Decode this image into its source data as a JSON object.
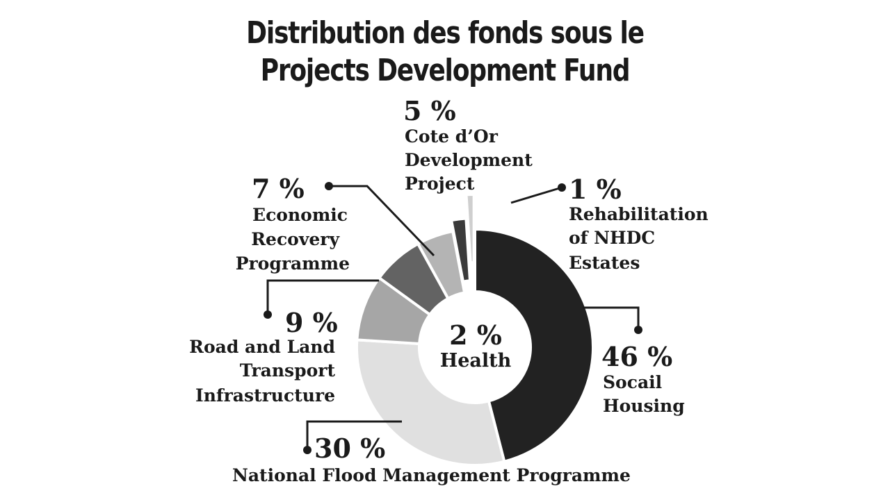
{
  "chart_data": {
    "type": "pie",
    "title": "Distribution des fonds sous le Projects Development Fund",
    "title_lines": [
      "Distribution des fonds sous le",
      "Projects Development Fund"
    ],
    "style": "donut",
    "slices": [
      {
        "label": "Socail Housing",
        "label_lines": [
          "Socail",
          "Housing"
        ],
        "value": 46,
        "pct_text": "46 %",
        "color": "#222222"
      },
      {
        "label": "National Flood Management Programme",
        "label_lines": [
          "National Flood Management Programme"
        ],
        "value": 30,
        "pct_text": "30 %",
        "color": "#e0e0e0"
      },
      {
        "label": "Road and Land Transport Infrastructure",
        "label_lines": [
          "Road and Land",
          "Transport",
          "Infrastructure"
        ],
        "value": 9,
        "pct_text": "9 %",
        "color": "#a6a6a6"
      },
      {
        "label": "Economic Recovery Programme",
        "label_lines": [
          "Economic",
          "Recovery",
          "Programme"
        ],
        "value": 7,
        "pct_text": "7 %",
        "color": "#636363"
      },
      {
        "label": "Cote d’Or Development Project",
        "label_lines": [
          "Cote d’Or",
          "Development",
          "Project"
        ],
        "value": 5,
        "pct_text": "5 %",
        "color": "#b4b4b4"
      },
      {
        "label": "Health",
        "label_lines": [
          "Health"
        ],
        "value": 2,
        "pct_text": "2 %",
        "color": "#3a3a3a"
      },
      {
        "label": "Rehabilitation of NHDC Estates",
        "label_lines": [
          "Rehabilitation",
          "of NHDC",
          "Estates"
        ],
        "value": 1,
        "pct_text": "1 %",
        "color": "#cfcfcf"
      }
    ]
  }
}
